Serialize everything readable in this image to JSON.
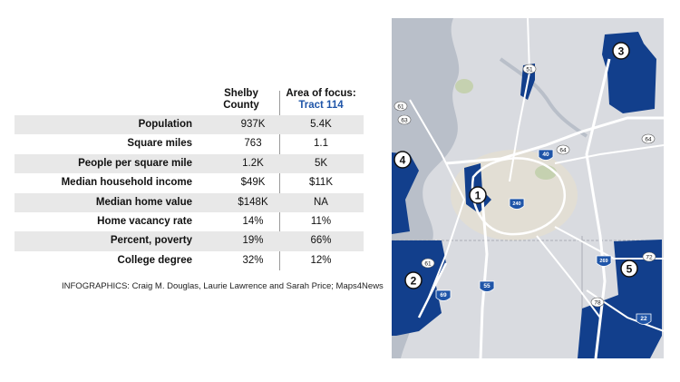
{
  "table": {
    "columns": {
      "county_line1": "Shelby",
      "county_line2": "County",
      "focus_line1": "Area of focus:",
      "focus_line2": "Tract 114"
    },
    "rows": [
      {
        "label": "Population",
        "county": "937K",
        "tract": "5.4K"
      },
      {
        "label": "Square miles",
        "county": "763",
        "tract": "1.1"
      },
      {
        "label": "People per square mile",
        "county": "1.2K",
        "tract": "5K"
      },
      {
        "label": "Median household income",
        "county": "$49K",
        "tract": "$11K"
      },
      {
        "label": "Median home value",
        "county": "$148K",
        "tract": "NA"
      },
      {
        "label": "Home vacancy rate",
        "county": "14%",
        "tract": "11%"
      },
      {
        "label": "Percent, poverty",
        "county": "19%",
        "tract": "66%"
      },
      {
        "label": "College degree",
        "county": "32%",
        "tract": "12%"
      }
    ]
  },
  "credit": "INFOGRAPHICS: Craig M. Douglas, Laurie Lawrence and Sarah Price; Maps4News",
  "map": {
    "area_markers": [
      "1",
      "2",
      "3",
      "4",
      "5"
    ],
    "route_shields": {
      "r51": "51",
      "r61a": "61",
      "r63": "63",
      "r64a": "64",
      "r64b": "64",
      "r40": "40",
      "r240": "240",
      "r61b": "61",
      "r69": "69",
      "r55": "55",
      "r269": "269",
      "r72": "72",
      "r78": "78",
      "r22": "22"
    },
    "colors": {
      "tract_fill": "#123f8c",
      "land": "#d9dbe0",
      "water": "#b9bfc9",
      "roads": "#ffffff",
      "interstate_shield": "#1f55a8",
      "accent_text": "#1f55a8"
    }
  }
}
